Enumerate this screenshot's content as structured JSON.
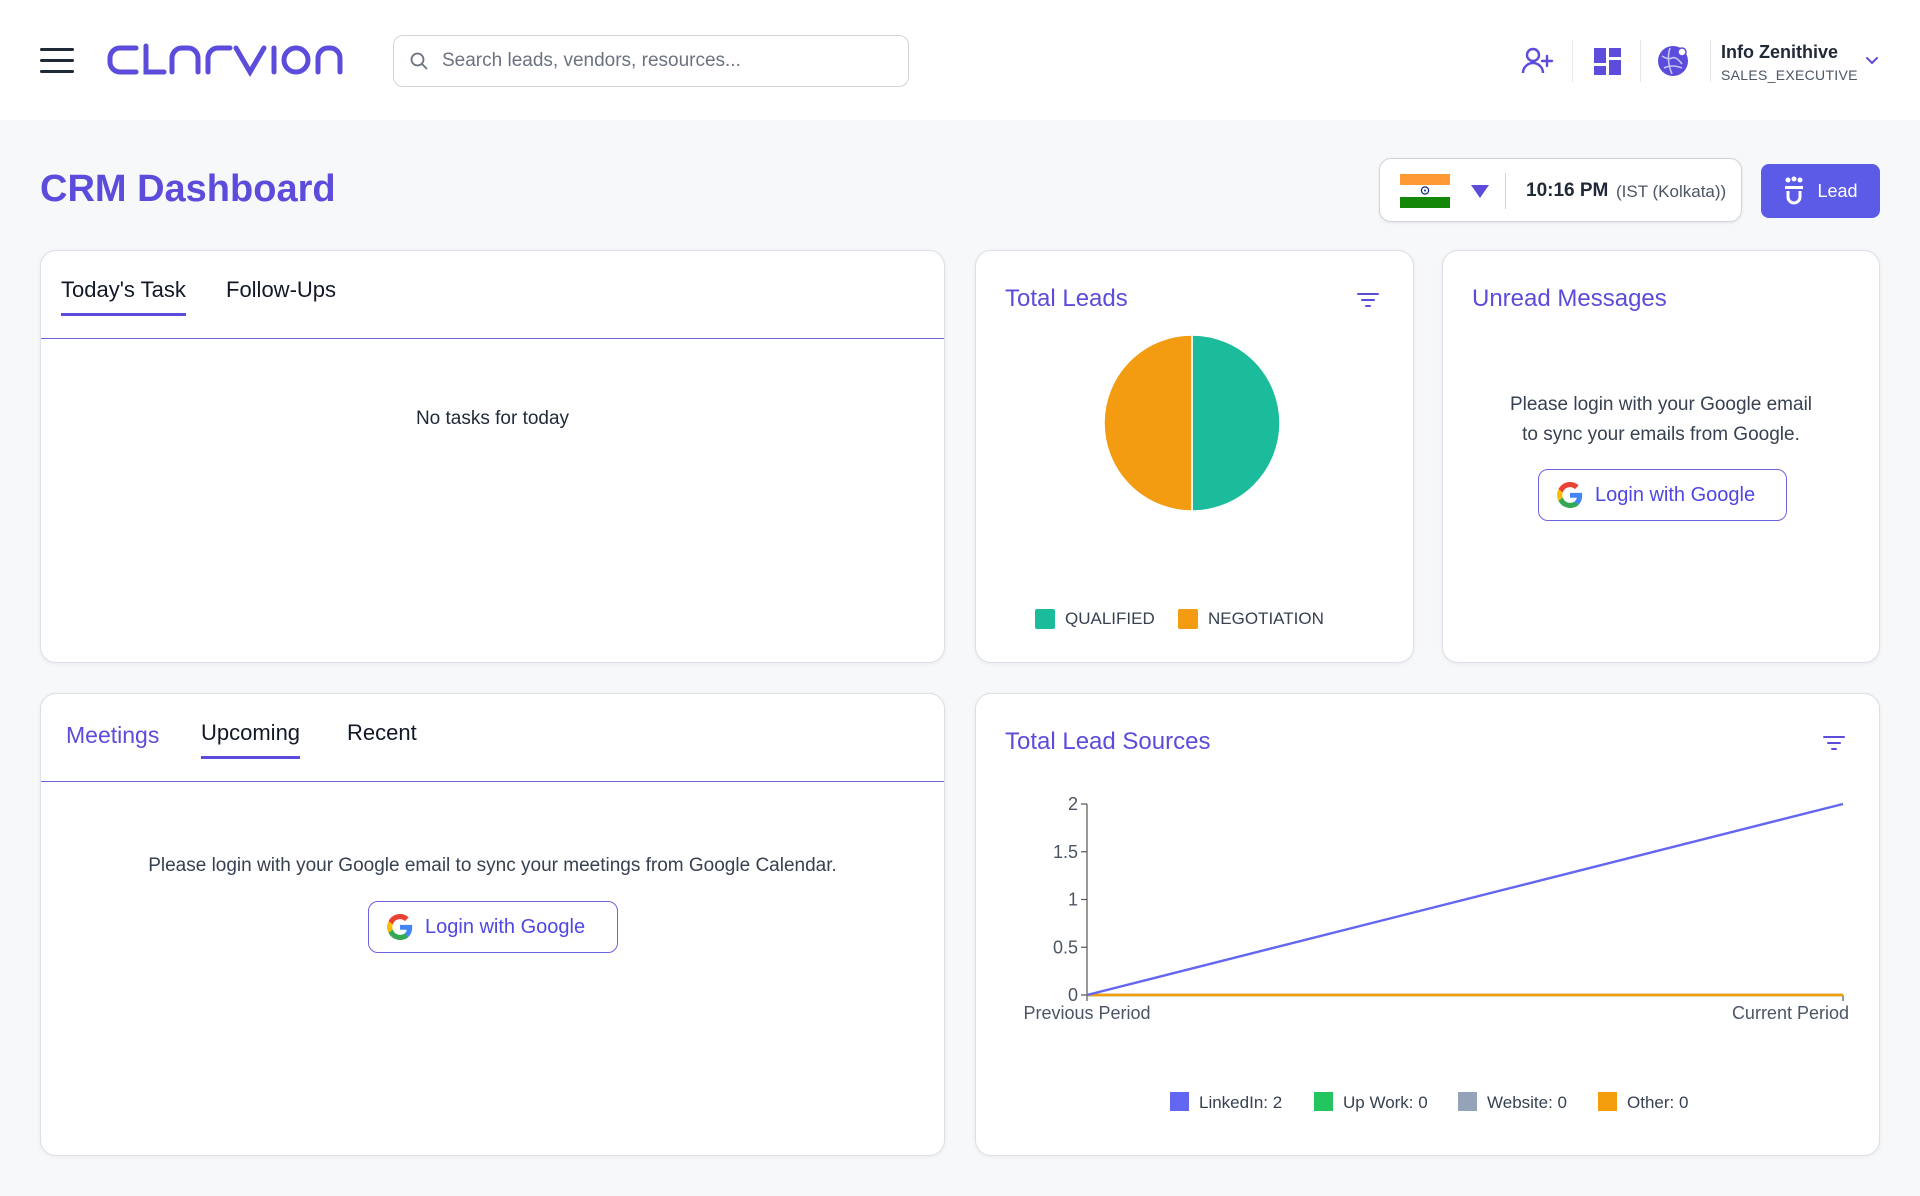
{
  "header": {
    "search_placeholder": "Search leads, vendors, resources...",
    "user": {
      "name": "Info Zenithive",
      "role": "SALES_EXECUTIVE"
    }
  },
  "page": {
    "title": "CRM Dashboard",
    "time": "10:16 PM",
    "timezone": "(IST (Kolkata))",
    "lead_button": "Lead"
  },
  "tasks_card": {
    "tabs": [
      "Today's Task",
      "Follow-Ups"
    ],
    "empty_text": "No tasks for today"
  },
  "total_leads": {
    "title": "Total Leads"
  },
  "unread_messages": {
    "title": "Unread Messages",
    "message_line1": "Please login with your Google email",
    "message_line2": "to sync your emails from Google.",
    "login_button": "Login with Google"
  },
  "meetings_card": {
    "tabs": [
      "Meetings",
      "Upcoming",
      "Recent"
    ],
    "message": "Please login with your Google email to sync your meetings from Google Calendar.",
    "login_button": "Login with Google"
  },
  "lead_sources": {
    "title": "Total Lead Sources"
  },
  "colors": {
    "accent": "#5b4cdb",
    "qualified": "#1abc9c",
    "negotiation": "#f39c12",
    "linkedin": "#6366f1",
    "upwork": "#22c55e",
    "website": "#94a3b8",
    "other": "#f59e0b"
  },
  "chart_data": [
    {
      "type": "pie",
      "categories": [
        "QUALIFIED",
        "NEGOTIATION"
      ],
      "values": [
        1,
        1
      ],
      "legend": [
        "QUALIFIED",
        "NEGOTIATION"
      ],
      "legend_position": "bottom"
    },
    {
      "type": "line",
      "categories": [
        "Previous Period",
        "Current Period"
      ],
      "series": [
        {
          "name": "LinkedIn: 2",
          "values": [
            0,
            2
          ]
        },
        {
          "name": "Up Work: 0",
          "values": [
            0,
            0
          ]
        },
        {
          "name": "Website: 0",
          "values": [
            0,
            0
          ]
        },
        {
          "name": "Other: 0",
          "values": [
            0,
            0
          ]
        }
      ],
      "yticks": [
        "0",
        "0.5",
        "1",
        "1.5",
        "2"
      ],
      "ylim": [
        0,
        2
      ],
      "legend_position": "bottom",
      "grid": false
    }
  ]
}
